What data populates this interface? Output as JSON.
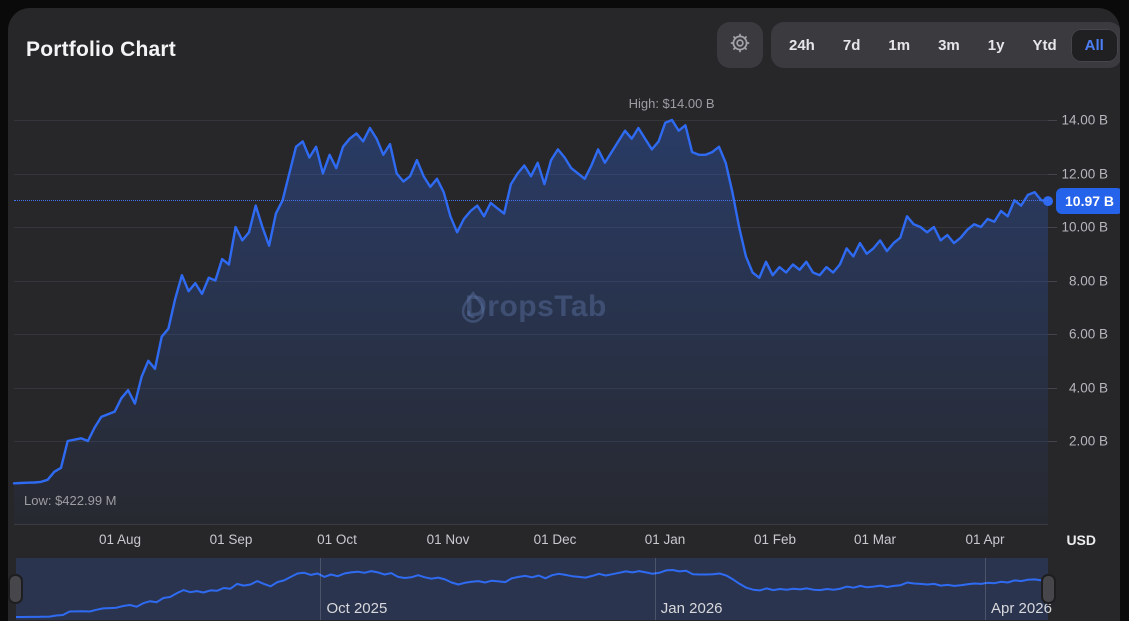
{
  "header": {
    "title": "Portfolio Chart",
    "ranges": [
      "24h",
      "7d",
      "1m",
      "3m",
      "1y",
      "Ytd",
      "All"
    ],
    "active_range": "All"
  },
  "chart": {
    "high_label": "High: $14.00 B",
    "low_label": "Low: $422.99 M",
    "current_badge": "10.97 B",
    "watermark": "DropsTab",
    "currency_label": "USD"
  },
  "colors": {
    "accent_line": "#2f6bf2",
    "badge_bg": "#2563eb",
    "active_range_text": "#4c7ff5",
    "minimap_bg": "#2a344e",
    "card_bg": "#27272a"
  },
  "chart_data": {
    "type": "line",
    "title": "Portfolio Chart",
    "unit": "USD",
    "value_scale": "billions",
    "ylim": [
      0,
      14.8
    ],
    "grid": true,
    "legend": false,
    "y_gridlines": [
      14,
      12,
      10,
      8,
      6,
      4,
      2
    ],
    "y_tick_labels": [
      "14.00 B",
      "12.00 B",
      "10.00 B",
      "8.00 B",
      "6.00 B",
      "4.00 B",
      "2.00 B"
    ],
    "x_axis": [
      {
        "label": "01 Aug",
        "f": 0.1025
      },
      {
        "label": "01 Sep",
        "f": 0.2099
      },
      {
        "label": "01 Oct",
        "f": 0.3124
      },
      {
        "label": "01 Nov",
        "f": 0.4197
      },
      {
        "label": "01 Dec",
        "f": 0.5232
      },
      {
        "label": "01 Jan",
        "f": 0.6296
      },
      {
        "label": "01 Feb",
        "f": 0.736
      },
      {
        "label": "01 Mar",
        "f": 0.8327
      },
      {
        "label": "01 Apr",
        "f": 0.9391
      }
    ],
    "high": {
      "label": "High: $14.00 B",
      "value": 14.0,
      "f": 0.636
    },
    "low": {
      "label": "Low: $422.99 M",
      "value": 0.42299
    },
    "current": {
      "label": "10.97 B",
      "value": 10.97
    },
    "series": [
      {
        "name": "Portfolio value (USD billions)",
        "values": [
          0.42,
          0.43,
          0.44,
          0.45,
          0.47,
          0.55,
          0.85,
          1.0,
          2.0,
          2.05,
          2.1,
          2.0,
          2.5,
          2.9,
          3.0,
          3.1,
          3.6,
          3.9,
          3.4,
          4.4,
          5.0,
          4.7,
          5.9,
          6.2,
          7.3,
          8.2,
          7.6,
          7.9,
          7.5,
          8.1,
          8.0,
          8.8,
          8.6,
          10.0,
          9.5,
          9.8,
          10.8,
          10.0,
          9.3,
          10.5,
          11.0,
          12.0,
          13.0,
          13.2,
          12.6,
          13.0,
          12.0,
          12.7,
          12.2,
          13.0,
          13.3,
          13.5,
          13.2,
          13.7,
          13.3,
          12.7,
          13.1,
          12.0,
          11.7,
          11.9,
          12.5,
          11.9,
          11.5,
          11.8,
          11.3,
          10.4,
          9.8,
          10.3,
          10.6,
          10.8,
          10.4,
          10.9,
          10.7,
          10.5,
          11.6,
          12.0,
          12.3,
          11.9,
          12.4,
          11.6,
          12.5,
          12.9,
          12.6,
          12.2,
          12.0,
          11.8,
          12.3,
          12.9,
          12.4,
          12.8,
          13.2,
          13.6,
          13.3,
          13.7,
          13.3,
          12.9,
          13.2,
          13.9,
          14.0,
          13.6,
          13.8,
          12.8,
          12.7,
          12.7,
          12.8,
          13.0,
          12.4,
          11.3,
          10.0,
          8.9,
          8.3,
          8.1,
          8.7,
          8.2,
          8.5,
          8.3,
          8.6,
          8.4,
          8.7,
          8.3,
          8.2,
          8.5,
          8.3,
          8.6,
          9.2,
          8.9,
          9.4,
          9.0,
          9.2,
          9.5,
          9.1,
          9.4,
          9.6,
          10.4,
          10.1,
          10.0,
          9.8,
          10.0,
          9.5,
          9.7,
          9.4,
          9.6,
          9.9,
          10.1,
          10.0,
          10.3,
          10.2,
          10.6,
          10.4,
          11.0,
          10.8,
          11.2,
          11.3,
          11.0,
          10.97
        ]
      }
    ],
    "minimap": {
      "labels": [
        {
          "label": "Oct 2025",
          "f": 0.295
        },
        {
          "label": "Jan 2026",
          "f": 0.619
        },
        {
          "label": "Apr 2026",
          "f": 0.939
        }
      ]
    }
  }
}
